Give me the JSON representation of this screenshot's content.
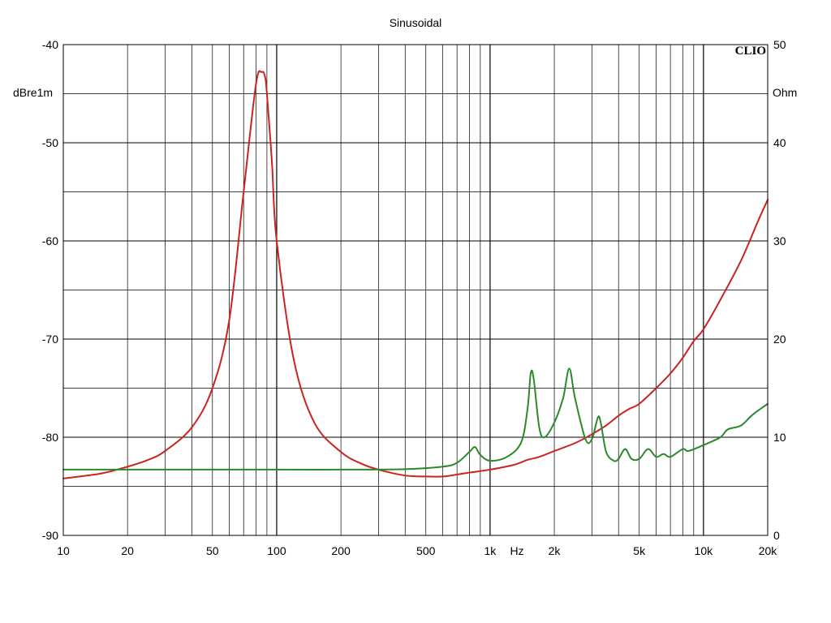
{
  "chart_data": {
    "type": "line",
    "title": "Sinusoidal",
    "brand": "CLIO",
    "x_axis": {
      "scale": "log",
      "range": [
        10,
        20000
      ],
      "unit_label": "Hz",
      "ticks": [
        {
          "value": 10,
          "label": "10"
        },
        {
          "value": 20,
          "label": "20"
        },
        {
          "value": 50,
          "label": "50"
        },
        {
          "value": 100,
          "label": "100"
        },
        {
          "value": 200,
          "label": "200"
        },
        {
          "value": 500,
          "label": "500"
        },
        {
          "value": 1000,
          "label": "1k"
        },
        {
          "value": 2000,
          "label": "2k"
        },
        {
          "value": 5000,
          "label": "5k"
        },
        {
          "value": 10000,
          "label": "10k"
        },
        {
          "value": 20000,
          "label": "20k"
        }
      ]
    },
    "y_left": {
      "label": "dBre1m",
      "range": [
        -90,
        -40
      ],
      "ticks": [
        -40,
        -50,
        -60,
        -70,
        -80,
        -90
      ]
    },
    "y_right": {
      "label": "Ohm",
      "range": [
        0,
        50
      ],
      "ticks": [
        50,
        40,
        30,
        20,
        10,
        0
      ]
    },
    "grid": true,
    "series": [
      {
        "color": "#cc2222",
        "axis": "right",
        "x": [
          10,
          15,
          20,
          25,
          30,
          40,
          50,
          60,
          70,
          80,
          85,
          88,
          90,
          95,
          100,
          120,
          150,
          200,
          250,
          300,
          400,
          500,
          600,
          700,
          800,
          1000,
          1300,
          1500,
          1700,
          2000,
          2500,
          3000,
          3500,
          4000,
          4500,
          5000,
          6000,
          7000,
          8000,
          9000,
          10000,
          12000,
          15000,
          18000,
          20000
        ],
        "y": [
          5.8,
          6.3,
          7.0,
          7.7,
          8.6,
          11.0,
          15.0,
          22.0,
          35.0,
          46.0,
          47.2,
          46.8,
          45.0,
          38.0,
          30.0,
          18.0,
          11.5,
          8.5,
          7.3,
          6.7,
          6.1,
          6.0,
          6.0,
          6.2,
          6.4,
          6.7,
          7.2,
          7.7,
          8.0,
          8.6,
          9.4,
          10.3,
          11.2,
          12.2,
          12.9,
          13.4,
          15.0,
          16.5,
          18.1,
          19.8,
          21.0,
          24.0,
          28.0,
          32.0,
          34.2
        ]
      },
      {
        "color": "#2a8a2a",
        "axis": "right",
        "x": [
          10,
          100,
          200,
          400,
          600,
          700,
          800,
          850,
          900,
          1000,
          1200,
          1400,
          1500,
          1550,
          1600,
          1700,
          1800,
          2000,
          2200,
          2350,
          2500,
          2800,
          3000,
          3200,
          3300,
          3500,
          3800,
          4000,
          4300,
          4600,
          5000,
          5500,
          6000,
          6500,
          7000,
          8000,
          8500,
          10000,
          12000,
          13000,
          15000,
          17000,
          20000
        ],
        "y": [
          6.7,
          6.7,
          6.7,
          6.75,
          7.0,
          7.4,
          8.5,
          9.0,
          8.2,
          7.6,
          8.0,
          9.5,
          13.0,
          16.5,
          16.0,
          11.0,
          10.0,
          11.5,
          14.0,
          17.0,
          14.0,
          9.8,
          9.8,
          12.0,
          11.5,
          8.5,
          7.6,
          7.8,
          8.8,
          7.8,
          7.8,
          8.8,
          8.0,
          8.3,
          8.0,
          8.8,
          8.6,
          9.2,
          10.0,
          10.8,
          11.2,
          12.3,
          13.4
        ]
      }
    ]
  }
}
